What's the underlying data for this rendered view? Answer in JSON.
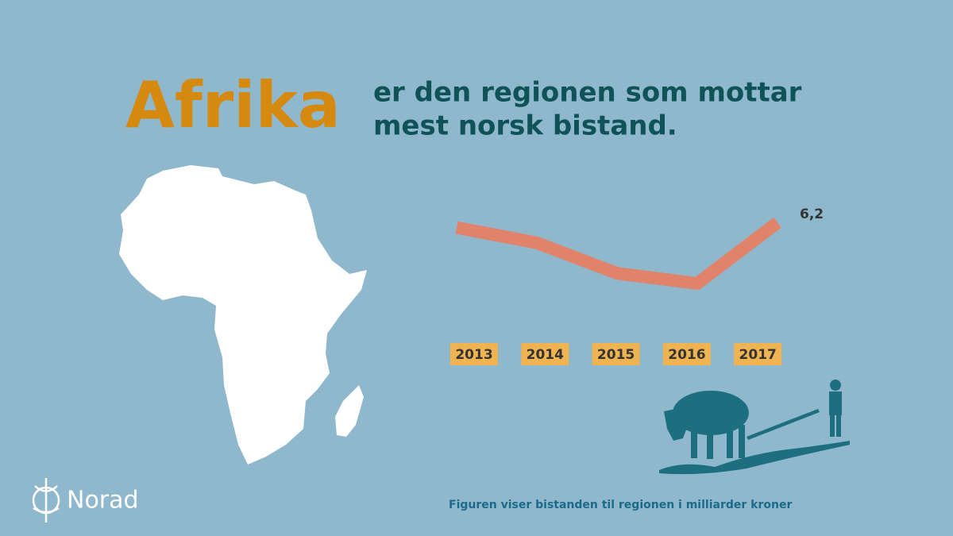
{
  "chart_data": {
    "type": "line",
    "title": "Afrika",
    "subtitle": [
      "er den regionen som mottar",
      "mest norsk bistand."
    ],
    "caption": "Figuren viser bistanden til regionen i milliarder kroner",
    "brand": "Norad",
    "categories": [
      "2013",
      "2014",
      "2015",
      "2016",
      "2017"
    ],
    "values": [
      6.1,
      5.8,
      5.2,
      5.0,
      6.2
    ],
    "value_labels": [
      null,
      null,
      null,
      null,
      "6,2"
    ],
    "color": "#e0836a",
    "ylim": [
      4,
      7
    ]
  }
}
